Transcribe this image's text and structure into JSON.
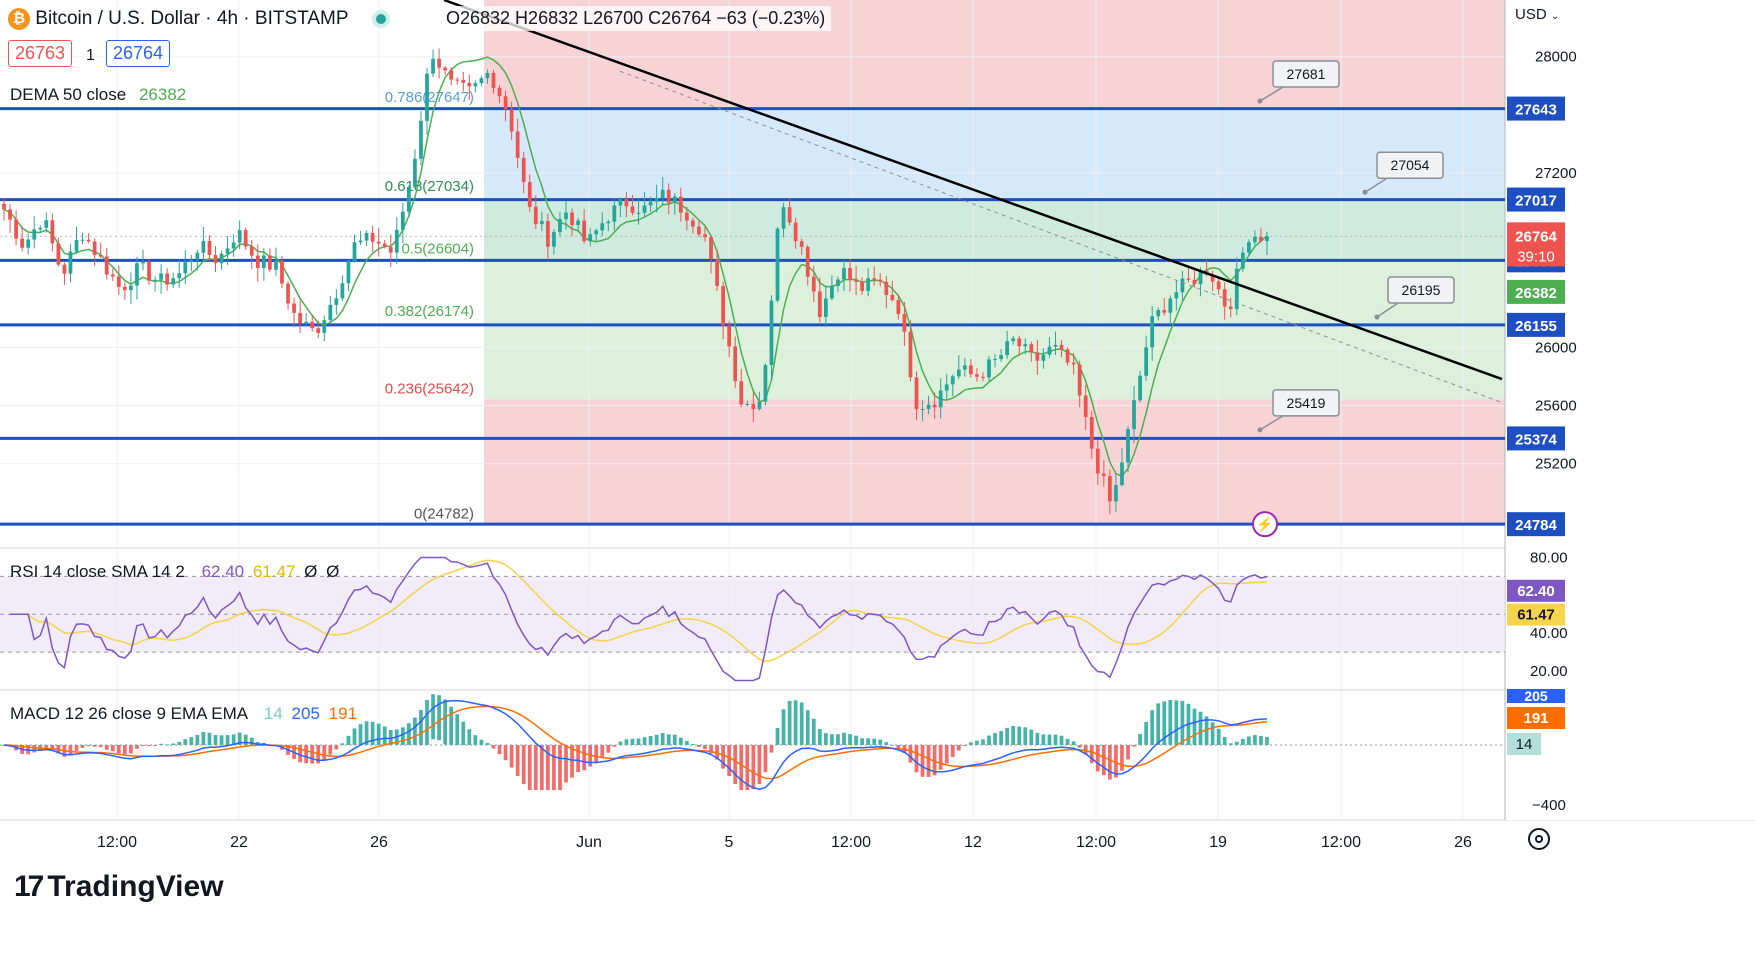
{
  "header": {
    "symbol_title": "Bitcoin / U.S. Dollar · 4h · BITSTAMP",
    "ohlc": "O26832 H26832 L26700 C26764 −63 (−0.23%)",
    "sell_price": "26763",
    "spread": "1",
    "buy_price": "26764",
    "dema_label": "DEMA 50 close",
    "dema_value": "26382",
    "currency": "USD"
  },
  "rsi": {
    "label": "RSI 14 close SMA 14 2",
    "v1": "62.40",
    "v2": "61.47",
    "v3": "Ø",
    "v4": "Ø"
  },
  "macd": {
    "label": "MACD 12 26 close 9 EMA EMA",
    "v1": "14",
    "v2": "205",
    "v3": "191"
  },
  "branding": {
    "logo_text": "TradingView"
  },
  "colors": {
    "up": "#26a69a",
    "down": "#ef5350",
    "level_line": "#1e4fc2",
    "trendline": "#000000",
    "dema": "#4caf50",
    "rsi_line": "#7e57c2",
    "rsi_sma": "#f5d34a",
    "macd_line": "#2962ff",
    "signal_line": "#ff6d00"
  },
  "chart_data": {
    "type": "candlestick",
    "title": "Bitcoin / U.S. Dollar · 4h · BITSTAMP",
    "ylim": [
      24620,
      28390
    ],
    "y_ticks": [
      "28000",
      "27200",
      "26000",
      "25600",
      "25200"
    ],
    "x_ticks": [
      "12:00",
      "22",
      "26",
      "Jun",
      "5",
      "12:00",
      "12",
      "12:00",
      "19",
      "12:00",
      "26"
    ],
    "price_levels": [
      {
        "label": "27643",
        "value": 27643
      },
      {
        "label": "27017",
        "value": 27017
      },
      {
        "label": "26599",
        "value": 26599
      },
      {
        "label": "26155",
        "value": 26155
      },
      {
        "label": "25374",
        "value": 25374
      },
      {
        "label": "24784",
        "value": 24784
      }
    ],
    "current_price": {
      "label": "26764",
      "countdown": "39:10",
      "value": 26764
    },
    "dema_tag": {
      "label": "26382",
      "value": 26382
    },
    "fib_levels": [
      {
        "label": "0.786(27647)",
        "value": 27647
      },
      {
        "label": "0.618(27034)",
        "value": 27034
      },
      {
        "label": "0.5(26604)",
        "value": 26604
      },
      {
        "label": "0.382(26174)",
        "value": 26174
      },
      {
        "label": "0.236(25642)",
        "value": 25642
      },
      {
        "label": "0(24782)",
        "value": 24782
      }
    ],
    "callouts": [
      {
        "label": "27681",
        "value": 27681
      },
      {
        "label": "27054",
        "value": 27054
      },
      {
        "label": "26195",
        "value": 26195
      },
      {
        "label": "25419",
        "value": 25419
      }
    ],
    "trendline": [
      {
        "value": 28390
      },
      {
        "value": 25782
      }
    ],
    "path_anchors": [
      26950,
      26700,
      26900,
      26500,
      26800,
      26600,
      26400,
      26550,
      26450,
      26500,
      26700,
      26600,
      26800,
      26600,
      26550,
      26200,
      26100,
      26350,
      26700,
      26750,
      26650,
      27200,
      28050,
      27800,
      27750,
      27900,
      27600,
      26950,
      26750,
      26950,
      26700,
      26900,
      27000,
      26950,
      27050,
      26950,
      26800,
      26200,
      25600,
      25650,
      27050,
      26700,
      26250,
      26550,
      26400,
      26450,
      26300,
      25600,
      25650,
      25850,
      25800,
      25900,
      26050,
      25900,
      26000,
      25850,
      25300,
      24900,
      25500,
      26150,
      26350,
      26450,
      26550,
      26250,
      26780,
      26764
    ],
    "rsi": {
      "ylim": [
        0,
        100
      ],
      "ticks": [
        "80.00",
        "40.00",
        "20.00"
      ],
      "bands": [
        70,
        50,
        30
      ],
      "rsi_value": "62.40",
      "sma_value": "61.47"
    },
    "macd": {
      "ticks": [
        "−400"
      ],
      "histogram_value": "14",
      "macd_value": "205",
      "signal_value": "191"
    }
  }
}
